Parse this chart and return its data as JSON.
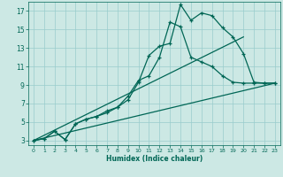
{
  "xlabel": "Humidex (Indice chaleur)",
  "bg_color": "#cce8e4",
  "grid_color": "#99cccc",
  "line_color": "#006655",
  "xlim": [
    -0.5,
    23.5
  ],
  "ylim": [
    2.5,
    18
  ],
  "xticks": [
    0,
    1,
    2,
    3,
    4,
    5,
    6,
    7,
    8,
    9,
    10,
    11,
    12,
    13,
    14,
    15,
    16,
    17,
    18,
    19,
    20,
    21,
    22,
    23
  ],
  "yticks": [
    3,
    5,
    7,
    9,
    11,
    13,
    15,
    17
  ],
  "series1_x": [
    0,
    1,
    2,
    3,
    4,
    5,
    6,
    7,
    8,
    9,
    10,
    11,
    12,
    13,
    14,
    15,
    16,
    17,
    18,
    19,
    20,
    21,
    22,
    23
  ],
  "series1_y": [
    3.0,
    3.2,
    4.0,
    3.1,
    4.8,
    5.3,
    5.6,
    6.2,
    6.6,
    7.4,
    9.3,
    12.2,
    13.2,
    13.5,
    17.7,
    16.0,
    16.8,
    16.5,
    15.2,
    14.2,
    12.4,
    9.3,
    9.2,
    9.2
  ],
  "series2_x": [
    0,
    1,
    2,
    3,
    4,
    5,
    6,
    7,
    8,
    9,
    10,
    11,
    12,
    13,
    14,
    15,
    16,
    17,
    18,
    19,
    20,
    21,
    22,
    23
  ],
  "series2_y": [
    3.0,
    3.2,
    4.0,
    3.1,
    4.8,
    5.3,
    5.6,
    6.0,
    6.6,
    7.8,
    9.5,
    10.0,
    12.0,
    15.8,
    15.3,
    12.0,
    11.5,
    11.0,
    10.0,
    9.3,
    9.2,
    9.2,
    9.2,
    9.2
  ],
  "series3_x": [
    0,
    23
  ],
  "series3_y": [
    3.0,
    9.2
  ],
  "series4_x": [
    0,
    20
  ],
  "series4_y": [
    3.0,
    14.2
  ]
}
